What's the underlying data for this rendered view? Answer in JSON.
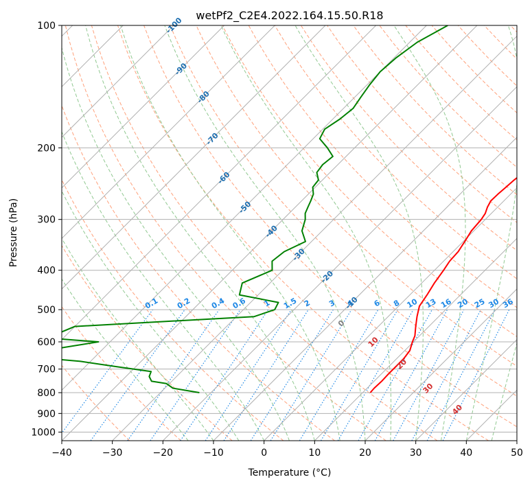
{
  "chart_data": {
    "type": "skew-t",
    "title": "wetPf2_C2E4.2022.164.15.50.R18",
    "xlabel": "Temperature (°C)",
    "ylabel": "Pressure (hPa)",
    "xlim": [
      -40,
      50
    ],
    "ylim": [
      1050,
      100
    ],
    "x_ticks": [
      "−40",
      "−30",
      "−20",
      "−10",
      "0",
      "10",
      "20",
      "30",
      "40",
      "50"
    ],
    "y_ticks": [
      {
        "p": 100,
        "label": "100"
      },
      {
        "p": 200,
        "label": "200"
      },
      {
        "p": 300,
        "label": "300"
      },
      {
        "p": 400,
        "label": "400"
      },
      {
        "p": 500,
        "label": "500"
      },
      {
        "p": 600,
        "label": "600"
      },
      {
        "p": 700,
        "label": "700"
      },
      {
        "p": 800,
        "label": "800"
      },
      {
        "p": 900,
        "label": "900"
      },
      {
        "p": 1000,
        "label": "1000"
      }
    ],
    "grid": true,
    "colors": {
      "temperature": "#ff0000",
      "dewpoint": "#008000",
      "isotherm": "#b0b0b0",
      "dry_adiabat": "#ffa07a",
      "moist_adiabat": "#90c890",
      "mixing_ratio": "#1e88e5",
      "isotherm_label": "#1f6fb0",
      "pseudoadiabat_label": "#d32f2f",
      "zero_label": "#808080"
    },
    "series": [
      {
        "points": [
          [
            -2.2,
            100
          ],
          [
            -3.7,
            105
          ],
          [
            -4.8,
            110
          ],
          [
            -5.0,
            115
          ],
          [
            -5.0,
            120
          ],
          [
            -5.0,
            130
          ],
          [
            -4.9,
            140
          ],
          [
            -4.7,
            150
          ],
          [
            -4.6,
            160
          ],
          [
            -4.7,
            170
          ],
          [
            -4.8,
            180
          ],
          [
            -4.5,
            190
          ],
          [
            -3.2,
            200
          ],
          [
            -1.8,
            210
          ],
          [
            -1.3,
            220
          ],
          [
            -1.7,
            230
          ],
          [
            -2.1,
            240
          ],
          [
            -2.3,
            250
          ],
          [
            -2.5,
            260
          ],
          [
            -2.6,
            270
          ],
          [
            -2.0,
            280
          ],
          [
            -1.2,
            290
          ],
          [
            -0.8,
            300
          ],
          [
            -0.5,
            320
          ],
          [
            0.3,
            340
          ],
          [
            1.0,
            360
          ],
          [
            1.2,
            380
          ],
          [
            1.8,
            400
          ],
          [
            2.5,
            430
          ],
          [
            3.4,
            460
          ],
          [
            4.1,
            490
          ],
          [
            5.7,
            520
          ],
          [
            7.4,
            550
          ],
          [
            9.1,
            580
          ],
          [
            9.8,
            600
          ],
          [
            11.0,
            630
          ],
          [
            11.4,
            660
          ],
          [
            11.4,
            690
          ],
          [
            11.4,
            720
          ],
          [
            11.5,
            750
          ],
          [
            11.4,
            780
          ],
          [
            11.5,
            800
          ]
        ]
      },
      {
        "points": [
          [
            -45.8,
            100
          ],
          [
            -48.5,
            110
          ],
          [
            -49.6,
            120
          ],
          [
            -50.0,
            130
          ],
          [
            -49.5,
            140
          ],
          [
            -48.8,
            150
          ],
          [
            -48.1,
            160
          ],
          [
            -48.6,
            170
          ],
          [
            -49.6,
            180
          ],
          [
            -48.7,
            190
          ],
          [
            -45.4,
            200
          ],
          [
            -42.6,
            210
          ],
          [
            -43.0,
            220
          ],
          [
            -42.6,
            230
          ],
          [
            -40.8,
            240
          ],
          [
            -40.5,
            250
          ],
          [
            -39.0,
            260
          ],
          [
            -38.2,
            270
          ],
          [
            -37.5,
            280
          ],
          [
            -36.8,
            290
          ],
          [
            -35.6,
            300
          ],
          [
            -34.0,
            320
          ],
          [
            -31.2,
            340
          ],
          [
            -33.4,
            360
          ],
          [
            -33.9,
            380
          ],
          [
            -32.1,
            400
          ],
          [
            -35.5,
            430
          ],
          [
            -33.7,
            460
          ],
          [
            -24.5,
            480
          ],
          [
            -23.8,
            500
          ],
          [
            -26.5,
            520
          ],
          [
            -60.0,
            550
          ],
          [
            -62.2,
            575
          ],
          [
            -60.6,
            590
          ],
          [
            -52.3,
            600
          ],
          [
            -58.2,
            620
          ],
          [
            -62.4,
            640
          ],
          [
            -65.0,
            650
          ],
          [
            -52.0,
            670
          ],
          [
            -44.0,
            690
          ],
          [
            -36.0,
            710
          ],
          [
            -35.4,
            730
          ],
          [
            -34.0,
            750
          ],
          [
            -30.6,
            760
          ],
          [
            -28.4,
            780
          ],
          [
            -22.3,
            800
          ]
        ]
      }
    ],
    "isotherm_labels": [
      {
        "t": -100,
        "text": "-100"
      },
      {
        "t": -90,
        "text": "-90"
      },
      {
        "t": -80,
        "text": "-80"
      },
      {
        "t": -70,
        "text": "-70"
      },
      {
        "t": -60,
        "text": "-60"
      },
      {
        "t": -50,
        "text": "-50"
      },
      {
        "t": -40,
        "text": "-40"
      },
      {
        "t": -30,
        "text": "-30"
      },
      {
        "t": -20,
        "text": "-20"
      },
      {
        "t": -10,
        "text": "-10"
      }
    ],
    "pseudoadiabat_labels": [
      {
        "t": 0,
        "text": "0"
      },
      {
        "t": 10,
        "text": "10"
      },
      {
        "t": 20,
        "text": "20"
      },
      {
        "t": 30,
        "text": "30"
      },
      {
        "t": 40,
        "text": "40"
      }
    ],
    "mixing_ratio_labels": [
      "0.1",
      "0.2",
      "0.4",
      "0.6",
      "1",
      "1.5",
      "2",
      "3",
      "4",
      "6",
      "8",
      "10",
      "13",
      "16",
      "20",
      "25",
      "30",
      "36"
    ]
  }
}
